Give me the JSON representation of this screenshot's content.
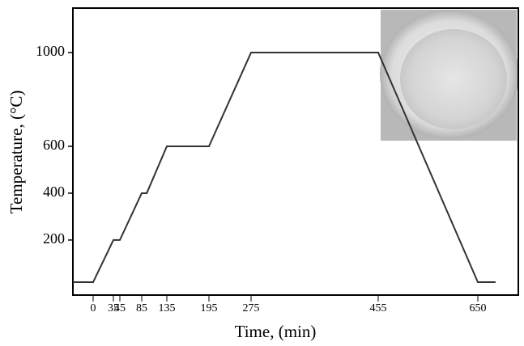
{
  "chart_data": {
    "type": "line",
    "x_label": "Time, (min)",
    "y_label": "Temperature, (°C)",
    "x": [
      -35,
      0,
      35,
      45,
      85,
      95,
      135,
      195,
      275,
      455,
      650,
      685
    ],
    "series": [
      {
        "color": "#333333",
        "values": [
          20,
          20,
          200,
          200,
          400,
          400,
          600,
          600,
          1000,
          1000,
          20,
          20
        ]
      }
    ],
    "xlim": [
      -35,
      730
    ],
    "xticks": [
      0,
      35,
      45,
      85,
      135,
      195,
      275,
      455,
      650
    ],
    "ylim": [
      -35,
      1190
    ],
    "yticks": [
      200,
      400,
      600,
      1000
    ]
  }
}
